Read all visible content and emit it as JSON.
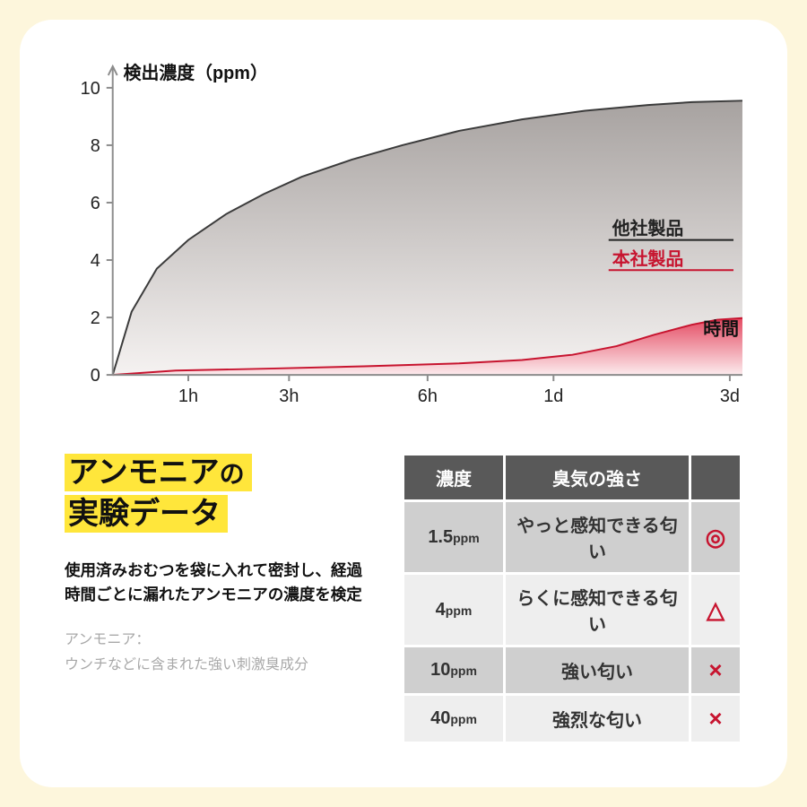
{
  "chart": {
    "type": "area",
    "y_axis_label": "検出濃度（ppm）",
    "x_axis_label": "時間",
    "y_ticks": [
      0,
      2,
      4,
      6,
      8,
      10
    ],
    "x_tick_labels": [
      "1h",
      "3h",
      "6h",
      "1d",
      "3d"
    ],
    "x_tick_positions": [
      0.12,
      0.28,
      0.5,
      0.7,
      0.98
    ],
    "ylim": [
      0,
      10.5
    ],
    "background_color": "#ffffff",
    "grid": false,
    "competitor": {
      "label": "他社製品",
      "label_color": "#222222",
      "stroke": "#3b3b3b",
      "fill_top": "#a7a2a0",
      "fill_bottom": "#f5f2f1",
      "points": [
        [
          0.0,
          0.0
        ],
        [
          0.03,
          2.2
        ],
        [
          0.07,
          3.7
        ],
        [
          0.12,
          4.7
        ],
        [
          0.18,
          5.6
        ],
        [
          0.24,
          6.3
        ],
        [
          0.3,
          6.9
        ],
        [
          0.38,
          7.5
        ],
        [
          0.46,
          8.0
        ],
        [
          0.55,
          8.5
        ],
        [
          0.65,
          8.9
        ],
        [
          0.75,
          9.2
        ],
        [
          0.85,
          9.4
        ],
        [
          0.92,
          9.5
        ],
        [
          1.0,
          9.55
        ]
      ]
    },
    "ours": {
      "label": "本社製品",
      "label_color": "#c7142f",
      "stroke": "#c7142f",
      "fill_top": "#e44a62",
      "fill_bottom": "#fcebed",
      "points": [
        [
          0.0,
          0.0
        ],
        [
          0.1,
          0.15
        ],
        [
          0.25,
          0.22
        ],
        [
          0.4,
          0.3
        ],
        [
          0.55,
          0.4
        ],
        [
          0.65,
          0.52
        ],
        [
          0.73,
          0.7
        ],
        [
          0.8,
          1.0
        ],
        [
          0.86,
          1.4
        ],
        [
          0.92,
          1.75
        ],
        [
          0.96,
          1.92
        ],
        [
          1.0,
          1.98
        ]
      ]
    },
    "axis_color": "#8c8c8c",
    "tick_font_size": 20,
    "label_font_size": 20,
    "stroke_width": 2
  },
  "title": {
    "line1_strong": "アンモニア",
    "line1_small": "の",
    "line2": "実験データ"
  },
  "description": "使用済みおむつを袋に入れて密封し、経過時間ごとに漏れたアンモニアの濃度を検定",
  "note": {
    "label": "アンモニア：",
    "body": "ウンチなどに含まれた強い刺激臭成分"
  },
  "table": {
    "header_bg": "#595959",
    "header_color": "#ffffff",
    "row_bg_a": "#cfcfcf",
    "row_bg_b": "#eeeeee",
    "cell_text_color": "#333333",
    "font_size": 20,
    "columns": [
      "濃度",
      "臭気の強さ",
      ""
    ],
    "col_widths": [
      "110px",
      "auto",
      "54px"
    ],
    "rows": [
      {
        "value": "1.5",
        "unit": "ppm",
        "label": "やっと感知できる匂い",
        "symbol": "◎",
        "symbol_color": "#c7142f"
      },
      {
        "value": "4",
        "unit": "ppm",
        "label": "らくに感知できる匂い",
        "symbol": "△",
        "symbol_color": "#c7142f"
      },
      {
        "value": "10",
        "unit": "ppm",
        "label": "強い匂い",
        "symbol": "×",
        "symbol_color": "#c7142f"
      },
      {
        "value": "40",
        "unit": "ppm",
        "label": "強烈な匂い",
        "symbol": "×",
        "symbol_color": "#c7142f"
      }
    ]
  }
}
